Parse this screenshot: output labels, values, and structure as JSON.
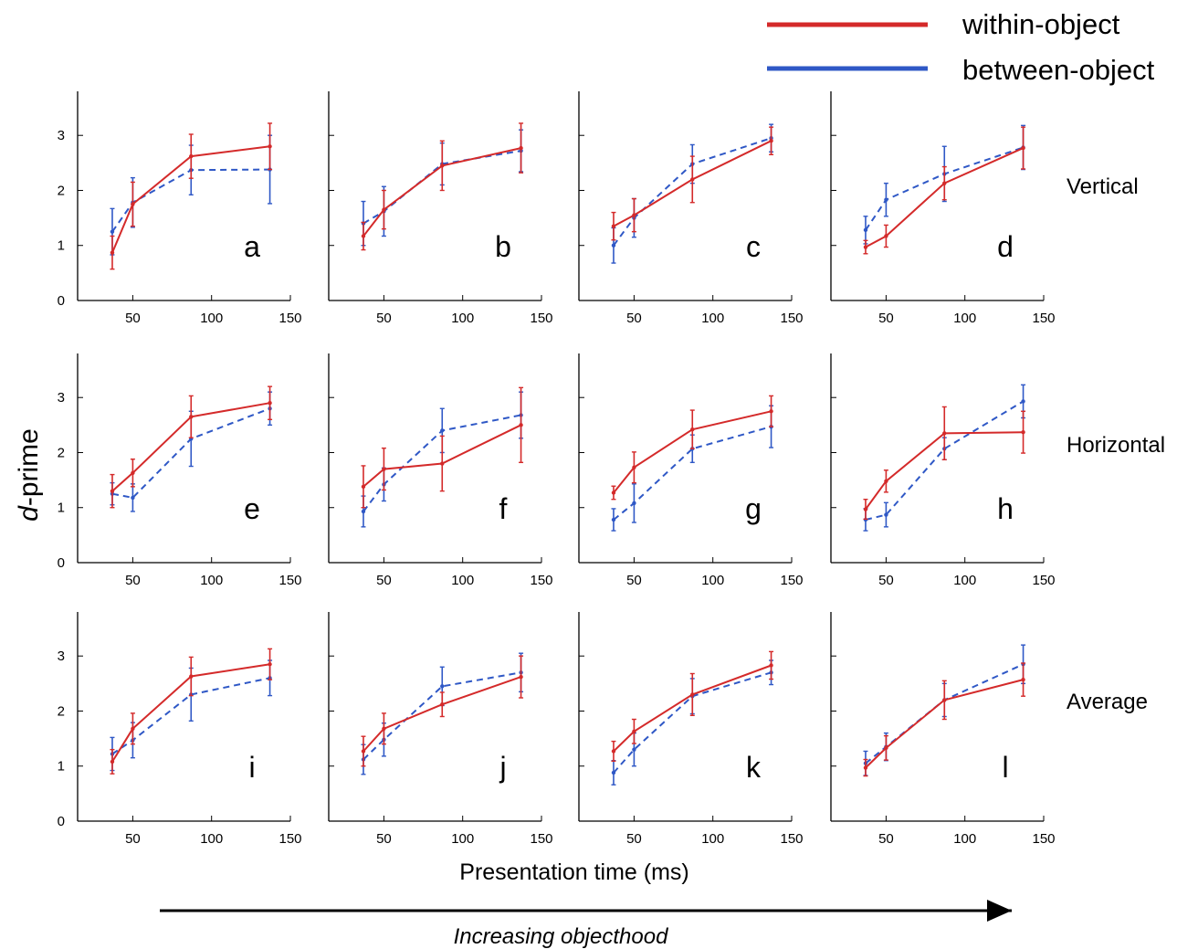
{
  "colors": {
    "within": "#d42a2a",
    "between": "#2f58c6",
    "axis": "#000000"
  },
  "legend": [
    {
      "label": "within-object",
      "style": "solid",
      "color": "#d42a2a"
    },
    {
      "label": "between-object",
      "style": "solid",
      "color": "#2f58c6"
    }
  ],
  "ylabel": "d-prime",
  "ylabel_italic": "d",
  "ylabel_rest": "-prime",
  "xlabel": "Presentation time (ms)",
  "caption": "Increasing objecthood",
  "row_labels": [
    "Vertical",
    "Horizontal",
    "Average"
  ],
  "chart_data": {
    "type": "line",
    "x": [
      37,
      50,
      87,
      137
    ],
    "xlim": [
      15,
      150
    ],
    "ylim": [
      0,
      3.8
    ],
    "xticks": [
      50,
      100,
      150
    ],
    "yticks": [
      0,
      1,
      2,
      3
    ],
    "series_names": [
      "within-object",
      "between-object"
    ],
    "panels": [
      {
        "letter": "a",
        "row": 0,
        "col": 0,
        "within": [
          0.87,
          1.75,
          2.62,
          2.8
        ],
        "within_err": [
          0.3,
          0.4,
          0.4,
          0.42
        ],
        "between": [
          1.25,
          1.78,
          2.37,
          2.38
        ],
        "between_err": [
          0.42,
          0.45,
          0.45,
          0.62
        ]
      },
      {
        "letter": "b",
        "row": 0,
        "col": 1,
        "within": [
          1.17,
          1.65,
          2.45,
          2.77
        ],
        "within_err": [
          0.25,
          0.35,
          0.45,
          0.45
        ],
        "between": [
          1.4,
          1.62,
          2.48,
          2.72
        ],
        "between_err": [
          0.4,
          0.45,
          0.38,
          0.38
        ]
      },
      {
        "letter": "c",
        "row": 0,
        "col": 2,
        "within": [
          1.35,
          1.55,
          2.2,
          2.9
        ],
        "within_err": [
          0.25,
          0.3,
          0.42,
          0.25
        ],
        "between": [
          1.0,
          1.5,
          2.48,
          2.95
        ],
        "between_err": [
          0.32,
          0.35,
          0.35,
          0.25
        ]
      },
      {
        "letter": "d",
        "row": 0,
        "col": 3,
        "within": [
          0.97,
          1.17,
          2.13,
          2.77
        ],
        "within_err": [
          0.12,
          0.2,
          0.3,
          0.38
        ],
        "between": [
          1.28,
          1.83,
          2.3,
          2.78
        ],
        "between_err": [
          0.25,
          0.3,
          0.5,
          0.4
        ]
      },
      {
        "letter": "e",
        "row": 1,
        "col": 0,
        "within": [
          1.3,
          1.63,
          2.65,
          2.9
        ],
        "within_err": [
          0.3,
          0.25,
          0.38,
          0.3
        ],
        "between": [
          1.25,
          1.18,
          2.25,
          2.8
        ],
        "between_err": [
          0.2,
          0.25,
          0.5,
          0.3
        ]
      },
      {
        "letter": "f",
        "row": 1,
        "col": 1,
        "within": [
          1.38,
          1.7,
          1.8,
          2.5
        ],
        "within_err": [
          0.38,
          0.38,
          0.5,
          0.68
        ],
        "between": [
          0.93,
          1.42,
          2.4,
          2.68
        ],
        "between_err": [
          0.28,
          0.3,
          0.4,
          0.42
        ]
      },
      {
        "letter": "g",
        "row": 1,
        "col": 2,
        "within": [
          1.27,
          1.73,
          2.42,
          2.75
        ],
        "within_err": [
          0.12,
          0.28,
          0.35,
          0.28
        ],
        "between": [
          0.78,
          1.08,
          2.07,
          2.47
        ],
        "between_err": [
          0.2,
          0.35,
          0.25,
          0.38
        ]
      },
      {
        "letter": "h",
        "row": 1,
        "col": 3,
        "within": [
          0.97,
          1.48,
          2.35,
          2.37
        ],
        "within_err": [
          0.18,
          0.2,
          0.48,
          0.38
        ],
        "between": [
          0.78,
          0.87,
          2.07,
          2.93
        ],
        "between_err": [
          0.2,
          0.22,
          0.2,
          0.3
        ]
      },
      {
        "letter": "i",
        "row": 2,
        "col": 0,
        "within": [
          1.08,
          1.68,
          2.63,
          2.85
        ],
        "within_err": [
          0.22,
          0.28,
          0.35,
          0.28
        ],
        "between": [
          1.22,
          1.47,
          2.3,
          2.6
        ],
        "between_err": [
          0.3,
          0.32,
          0.48,
          0.32
        ]
      },
      {
        "letter": "j",
        "row": 2,
        "col": 1,
        "within": [
          1.27,
          1.68,
          2.12,
          2.62
        ],
        "within_err": [
          0.27,
          0.28,
          0.22,
          0.38
        ],
        "between": [
          1.12,
          1.48,
          2.45,
          2.7
        ],
        "between_err": [
          0.27,
          0.3,
          0.35,
          0.35
        ]
      },
      {
        "letter": "k",
        "row": 2,
        "col": 2,
        "within": [
          1.27,
          1.63,
          2.3,
          2.83
        ],
        "within_err": [
          0.18,
          0.22,
          0.38,
          0.25
        ],
        "between": [
          0.88,
          1.3,
          2.27,
          2.7
        ],
        "between_err": [
          0.22,
          0.3,
          0.32,
          0.22
        ]
      },
      {
        "letter": "l",
        "row": 2,
        "col": 3,
        "within": [
          0.97,
          1.33,
          2.2,
          2.57
        ],
        "within_err": [
          0.15,
          0.22,
          0.35,
          0.3
        ],
        "between": [
          1.05,
          1.35,
          2.2,
          2.85
        ],
        "between_err": [
          0.22,
          0.25,
          0.3,
          0.35
        ]
      }
    ]
  }
}
